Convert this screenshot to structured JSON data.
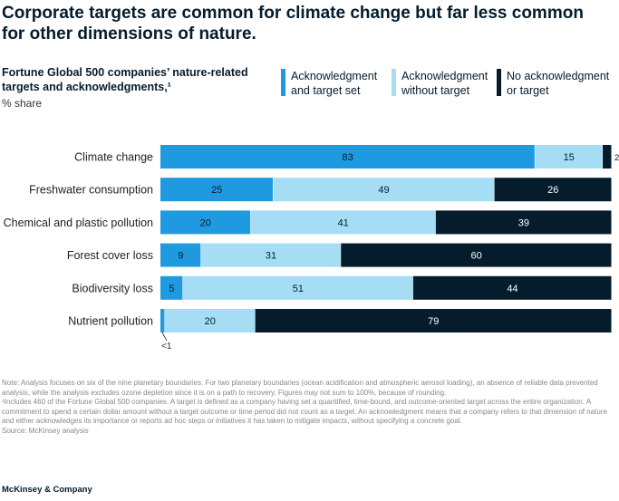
{
  "header": {
    "title": "Corporate targets are common for climate change but far less common for other dimensions of nature.",
    "subtitle": "Fortune Global 500 companies’ nature-related targets and acknowledgments,¹",
    "unit": "% share"
  },
  "legend": [
    {
      "label": "Acknowledgment and target set",
      "color": "#1f9ae0"
    },
    {
      "label": "Acknowledgment without target",
      "color": "#a5ddf5"
    },
    {
      "label": "No acknowledgment or target",
      "color": "#051c2c"
    }
  ],
  "chart_data": {
    "type": "bar",
    "orientation": "horizontal",
    "stacked": true,
    "categories": [
      "Climate change",
      "Freshwater consumption",
      "Chemical and plastic pollution",
      "Forest cover loss",
      "Biodiversity loss",
      "Nutrient pollution"
    ],
    "series": [
      {
        "name": "Acknowledgment and target set",
        "color": "#1f9ae0",
        "values": [
          83,
          25,
          20,
          9,
          5,
          1
        ],
        "labels": [
          "83",
          "25",
          "20",
          "9",
          "5",
          ""
        ]
      },
      {
        "name": "Acknowledgment without target",
        "color": "#a5ddf5",
        "values": [
          15,
          49,
          41,
          31,
          51,
          20
        ],
        "labels": [
          "15",
          "49",
          "41",
          "31",
          "51",
          "20"
        ]
      },
      {
        "name": "No acknowledgment or target",
        "color": "#051c2c",
        "values": [
          2,
          26,
          39,
          60,
          44,
          79
        ],
        "labels": [
          "2",
          "26",
          "39",
          "60",
          "44",
          "79"
        ]
      }
    ],
    "xlim": [
      0,
      100
    ],
    "annotations": [
      {
        "category": "Nutrient pollution",
        "text": "<1"
      }
    ]
  },
  "notes": {
    "note": "Note: Analysis focuses on six of the nine planetary boundaries. For two planetary boundaries (ocean acidification and atmospheric aerosol loading), an absence of reliable data prevented analysis, while the analysis excludes ozone depletion since it is on a path to recovery. Figures may not sum to 100%, because of rounding.",
    "footnote": "¹Includes 460 of the Fortune Global 500 companies. A target is defined as a company having set a quantified, time-bound, and outcome-oriented target across the entire organization. A commitment to spend a certain dollar amount without a target outcome or time period did not count as a target. An acknowledgment means that a company refers to that dimension of nature and either acknowledges its importance or reports ad hoc steps or initiatives it has taken to mitigate impacts, without specifying a concrete goal.",
    "source": "Source: McKinsey analysis"
  },
  "brand": "McKinsey & Company"
}
